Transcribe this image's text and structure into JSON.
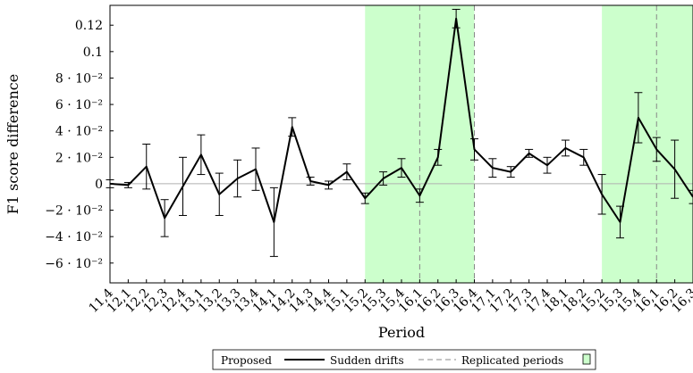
{
  "chart_data": {
    "type": "line",
    "xlabel": "Period",
    "ylabel": "F1 score difference",
    "categories": [
      "11,4",
      "12,1",
      "12,2",
      "12,3",
      "12,4",
      "13,1",
      "13,2",
      "13,3",
      "13,4",
      "14,1",
      "14,2",
      "14,3",
      "14,4",
      "15,1",
      "15,2",
      "15,3",
      "15,4",
      "16,1",
      "16,2",
      "16,3",
      "16,4",
      "17,1",
      "17,2",
      "17,3",
      "17,4",
      "18,1",
      "18,2",
      "15,2",
      "15,3",
      "15,4",
      "16,1",
      "16,2",
      "16,3"
    ],
    "ylim": [
      -0.075,
      0.135
    ],
    "y_ticks": [
      {
        "value": -0.06,
        "label": "−6 · 10⁻²"
      },
      {
        "value": -0.04,
        "label": "−4 · 10⁻²"
      },
      {
        "value": -0.02,
        "label": "−2 · 10⁻²"
      },
      {
        "value": 0,
        "label": "0"
      },
      {
        "value": 0.02,
        "label": "2 · 10⁻²"
      },
      {
        "value": 0.04,
        "label": "4 · 10⁻²"
      },
      {
        "value": 0.06,
        "label": "6 · 10⁻²"
      },
      {
        "value": 0.08,
        "label": "8 · 10⁻²"
      },
      {
        "value": 0.1,
        "label": "0.1"
      },
      {
        "value": 0.12,
        "label": "0.12"
      }
    ],
    "series": [
      {
        "name": "Proposed",
        "color": "#000000",
        "values": [
          0.0,
          -0.001,
          0.013,
          -0.026,
          -0.002,
          0.022,
          -0.008,
          0.004,
          0.011,
          -0.029,
          0.043,
          0.002,
          -0.001,
          0.009,
          -0.011,
          0.004,
          0.012,
          -0.009,
          0.02,
          0.125,
          0.026,
          0.012,
          0.009,
          0.023,
          0.014,
          0.027,
          0.02,
          -0.008,
          -0.029,
          0.05,
          0.026,
          0.011,
          -0.01
        ],
        "error": [
          0.003,
          0.002,
          0.017,
          0.014,
          0.022,
          0.015,
          0.016,
          0.014,
          0.016,
          0.026,
          0.007,
          0.003,
          0.003,
          0.006,
          0.004,
          0.005,
          0.007,
          0.005,
          0.006,
          0.007,
          0.008,
          0.007,
          0.004,
          0.003,
          0.006,
          0.006,
          0.006,
          0.015,
          0.012,
          0.019,
          0.009,
          0.022,
          0.005
        ]
      }
    ],
    "sudden_drift_indices": [
      17,
      20,
      30
    ],
    "replicated_period_ranges": [
      [
        14,
        20
      ],
      [
        27,
        32
      ]
    ],
    "zero_line": true,
    "legend": {
      "placement": "bottom-center",
      "entries": [
        "Proposed",
        "Sudden drifts",
        "Replicated periods"
      ]
    },
    "colors": {
      "line": "#000000",
      "drift": "#888888",
      "replicated_fill": "#ccffcc",
      "zero_line": "#b0b0b0"
    }
  }
}
